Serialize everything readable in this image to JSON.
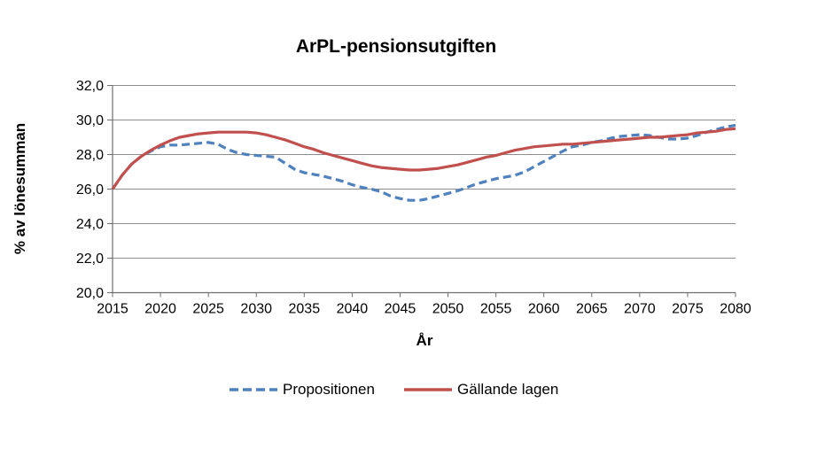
{
  "chart_data": {
    "type": "line",
    "title": "ArPL-pensionsutgiften",
    "xlabel": "År",
    "ylabel": "% av lönesumman",
    "grid": true,
    "legend_position": "bottom",
    "colors": {
      "propositionen_blue": "#4F81BD",
      "gallande_lagen_red": "#C0504D",
      "gridline_gray": "#8E8E8E",
      "axis_gray": "#6E6E6E",
      "text_black": "#000000"
    },
    "x_axis": {
      "min": 2015,
      "max": 2080,
      "step": 5,
      "ticks": [
        {
          "v": 2015,
          "label": "2015"
        },
        {
          "v": 2020,
          "label": "2020"
        },
        {
          "v": 2025,
          "label": "2025"
        },
        {
          "v": 2030,
          "label": "2030"
        },
        {
          "v": 2035,
          "label": "2035"
        },
        {
          "v": 2040,
          "label": "2040"
        },
        {
          "v": 2045,
          "label": "2045"
        },
        {
          "v": 2050,
          "label": "2050"
        },
        {
          "v": 2055,
          "label": "2055"
        },
        {
          "v": 2060,
          "label": "2060"
        },
        {
          "v": 2065,
          "label": "2065"
        },
        {
          "v": 2070,
          "label": "2070"
        },
        {
          "v": 2075,
          "label": "2075"
        },
        {
          "v": 2080,
          "label": "2080"
        }
      ]
    },
    "y_axis": {
      "min": 20,
      "max": 32,
      "step": 2,
      "ticks": [
        {
          "v": 20,
          "label": "20,0"
        },
        {
          "v": 22,
          "label": "22,0"
        },
        {
          "v": 24,
          "label": "24,0"
        },
        {
          "v": 26,
          "label": "26,0"
        },
        {
          "v": 28,
          "label": "28,0"
        },
        {
          "v": 30,
          "label": "30,0"
        },
        {
          "v": 32,
          "label": "32,0"
        }
      ]
    },
    "x": [
      2015,
      2016,
      2017,
      2018,
      2019,
      2020,
      2021,
      2022,
      2023,
      2024,
      2025,
      2026,
      2027,
      2028,
      2029,
      2030,
      2031,
      2032,
      2033,
      2034,
      2035,
      2036,
      2037,
      2038,
      2039,
      2040,
      2041,
      2042,
      2043,
      2044,
      2045,
      2046,
      2047,
      2048,
      2049,
      2050,
      2051,
      2052,
      2053,
      2054,
      2055,
      2056,
      2057,
      2058,
      2059,
      2060,
      2061,
      2062,
      2063,
      2064,
      2065,
      2066,
      2067,
      2068,
      2069,
      2070,
      2071,
      2072,
      2073,
      2074,
      2075,
      2076,
      2077,
      2078,
      2079,
      2080
    ],
    "series": [
      {
        "name": "Propositionen",
        "slug": "propositionen",
        "color": "#4F81BD",
        "line_style": "dashed",
        "values": [
          26.0,
          26.8,
          27.45,
          27.9,
          28.2,
          28.45,
          28.55,
          28.55,
          28.6,
          28.65,
          28.7,
          28.6,
          28.3,
          28.1,
          28.0,
          27.95,
          27.9,
          27.85,
          27.5,
          27.15,
          26.95,
          26.85,
          26.75,
          26.6,
          26.45,
          26.25,
          26.1,
          26.0,
          25.85,
          25.6,
          25.45,
          25.35,
          25.35,
          25.45,
          25.6,
          25.75,
          25.9,
          26.1,
          26.3,
          26.45,
          26.6,
          26.7,
          26.8,
          27.0,
          27.3,
          27.6,
          27.9,
          28.2,
          28.45,
          28.55,
          28.7,
          28.8,
          28.95,
          29.05,
          29.1,
          29.15,
          29.1,
          29.0,
          28.9,
          28.9,
          28.95,
          29.1,
          29.3,
          29.45,
          29.6,
          29.7
        ]
      },
      {
        "name": "Gällande lagen",
        "slug": "gallande-lagen",
        "color": "#C0504D",
        "line_style": "solid",
        "values": [
          26.0,
          26.8,
          27.45,
          27.9,
          28.25,
          28.55,
          28.8,
          29.0,
          29.1,
          29.2,
          29.25,
          29.3,
          29.3,
          29.3,
          29.3,
          29.25,
          29.15,
          29.0,
          28.85,
          28.65,
          28.45,
          28.3,
          28.1,
          27.95,
          27.8,
          27.65,
          27.5,
          27.35,
          27.25,
          27.2,
          27.15,
          27.1,
          27.1,
          27.15,
          27.2,
          27.3,
          27.4,
          27.55,
          27.7,
          27.85,
          27.95,
          28.1,
          28.25,
          28.35,
          28.45,
          28.5,
          28.55,
          28.6,
          28.6,
          28.65,
          28.7,
          28.75,
          28.8,
          28.85,
          28.9,
          28.95,
          29.0,
          29.0,
          29.05,
          29.1,
          29.15,
          29.25,
          29.3,
          29.35,
          29.45,
          29.5
        ]
      }
    ]
  }
}
